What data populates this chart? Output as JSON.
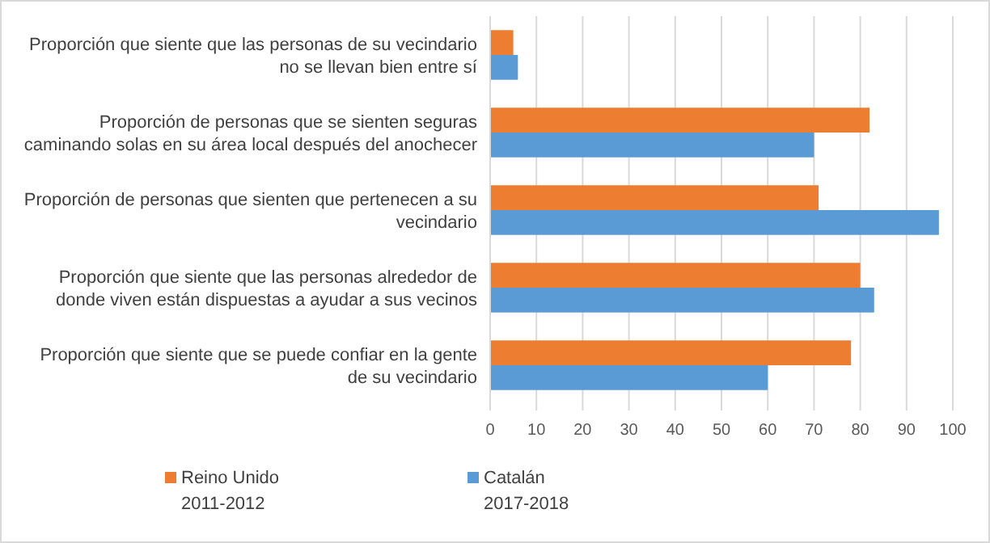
{
  "chart_data": {
    "type": "bar",
    "orientation": "horizontal",
    "categories": [
      "Proporción que siente que las personas de su vecindario no se llevan bien entre sí",
      "Proporción de personas que se sienten seguras caminando solas en su área local después del anochecer",
      "Proporción de personas que sienten que pertenecen a su vecindario",
      "Proporción que siente que las personas alrededor de donde viven están dispuestas a ayudar a sus vecinos",
      "Proporción que siente que se puede confiar en la gente de su vecindario"
    ],
    "series": [
      {
        "name": "Reino Unido 2011-2012",
        "color": "#ed7d31",
        "values": [
          5,
          82,
          71,
          80,
          78
        ]
      },
      {
        "name": "Catalán 2017-2018",
        "color": "#5b9bd5",
        "values": [
          6,
          70,
          97,
          83,
          60
        ]
      }
    ],
    "xlim": [
      0,
      100
    ],
    "xticks": [
      0,
      10,
      20,
      30,
      40,
      50,
      60,
      70,
      80,
      90,
      100
    ],
    "grid": "x",
    "legend": "bottom"
  }
}
